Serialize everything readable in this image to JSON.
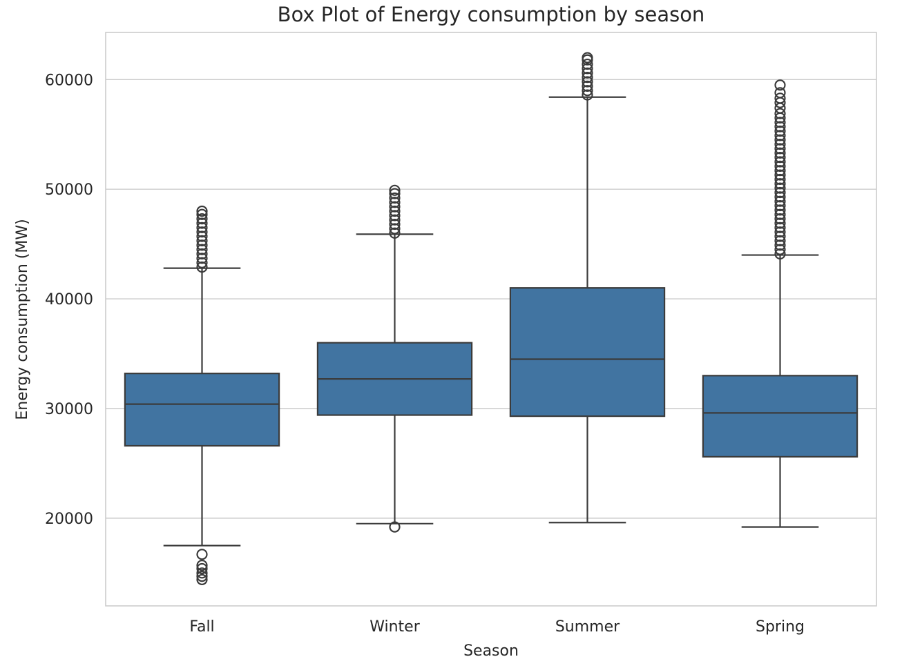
{
  "chart_data": {
    "type": "box",
    "title": "Box Plot of Energy consumption by season",
    "xlabel": "Season",
    "ylabel": "Energy consumption (MW)",
    "ylim": [
      12000,
      64300
    ],
    "yticks": [
      20000,
      30000,
      40000,
      50000,
      60000
    ],
    "grid": true,
    "box_color": "#4174a1",
    "categories": [
      "Fall",
      "Winter",
      "Summer",
      "Spring"
    ],
    "boxes": [
      {
        "category": "Fall",
        "whisker_low": 17500,
        "q1": 26600,
        "median": 30400,
        "q3": 33200,
        "whisker_high": 42800,
        "outliers_low": [
          14400,
          14700,
          15000,
          15400,
          15700,
          16700
        ],
        "outliers_high": [
          42900,
          43300,
          43700,
          44100,
          44500,
          44900,
          45300,
          45700,
          46100,
          46500,
          46900,
          47300,
          47700,
          48000
        ]
      },
      {
        "category": "Winter",
        "whisker_low": 19500,
        "q1": 29400,
        "median": 32700,
        "q3": 36000,
        "whisker_high": 45900,
        "outliers_low": [
          19200
        ],
        "outliers_high": [
          46000,
          46400,
          46800,
          47200,
          47600,
          48000,
          48400,
          48800,
          49200,
          49600,
          49900
        ]
      },
      {
        "category": "Summer",
        "whisker_low": 19600,
        "q1": 29300,
        "median": 34500,
        "q3": 41000,
        "whisker_high": 58400,
        "outliers_low": [],
        "outliers_high": [
          58600,
          59000,
          59400,
          59800,
          60200,
          60600,
          61000,
          61400,
          61800,
          62000
        ]
      },
      {
        "category": "Spring",
        "whisker_low": 19200,
        "q1": 25600,
        "median": 29600,
        "q3": 33000,
        "whisker_high": 44000,
        "outliers_low": [],
        "outliers_high": [
          44100,
          44500,
          44900,
          45300,
          45700,
          46100,
          46500,
          46900,
          47300,
          47700,
          48100,
          48500,
          48900,
          49300,
          49700,
          50100,
          50500,
          50900,
          51300,
          51700,
          52100,
          52500,
          52900,
          53300,
          53700,
          54100,
          54500,
          54900,
          55300,
          55700,
          56100,
          56500,
          56900,
          57400,
          57900,
          58300,
          58800,
          59500
        ]
      }
    ]
  }
}
